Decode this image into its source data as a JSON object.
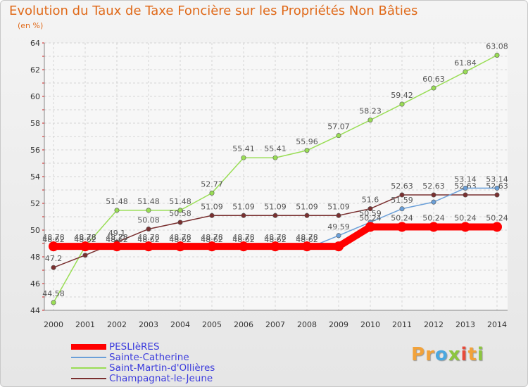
{
  "chart_data": {
    "type": "line",
    "title": "Evolution du Taux de Taxe Foncière sur les Propriétés Non Bâties",
    "ylabel": "(en %)",
    "xlabel": "",
    "ylim": [
      44,
      64
    ],
    "yticks": [
      44,
      46,
      48,
      50,
      52,
      54,
      56,
      58,
      60,
      62,
      64
    ],
    "grid": true,
    "legend_position": "bottom-left",
    "categories": [
      "2000",
      "2001",
      "2002",
      "2003",
      "2004",
      "2005",
      "2006",
      "2007",
      "2008",
      "2009",
      "2010",
      "2011",
      "2012",
      "2013",
      "2014"
    ],
    "series": [
      {
        "name": "PESLIèRES",
        "color": "#ff0000",
        "values": [
          48.78,
          48.78,
          48.78,
          48.78,
          48.78,
          48.78,
          48.78,
          48.78,
          48.78,
          48.78,
          50.24,
          50.24,
          50.24,
          50.24,
          50.24
        ],
        "labels": [
          "48.78",
          "48.78",
          "48.78",
          "48.78",
          "48.78",
          "48.78",
          "48.78",
          "48.78",
          "48.78",
          "",
          "50.24",
          "50.24",
          "50.24",
          "50.24",
          "50.24"
        ]
      },
      {
        "name": "Sainte-Catherine",
        "color": "#6a9fd8",
        "values": [
          48.62,
          48.62,
          48.62,
          48.62,
          48.62,
          48.62,
          48.62,
          48.62,
          48.62,
          49.59,
          50.59,
          51.59,
          52.1,
          53.14,
          53.14
        ],
        "labels": [
          "48.62",
          "48.62",
          "48.62",
          "48.62",
          "48.62",
          "48.62",
          "48.62",
          "48.62",
          "48.62",
          "49.59",
          "50.59",
          "51.59",
          "",
          "53.14",
          "53.14"
        ]
      },
      {
        "name": "Saint-Martin-d'Ollières",
        "color": "#99dd55",
        "values": [
          44.58,
          48.78,
          51.48,
          51.48,
          51.48,
          52.77,
          55.41,
          55.41,
          55.96,
          57.07,
          58.23,
          59.42,
          60.63,
          61.84,
          63.08
        ],
        "labels": [
          "44.58",
          "48.78",
          "51.48",
          "51.48",
          "51.48",
          "52.77",
          "55.41",
          "55.41",
          "55.96",
          "57.07",
          "58.23",
          "59.42",
          "60.63",
          "61.84",
          "63.08"
        ]
      },
      {
        "name": "Champagnat-le-Jeune",
        "color": "#7a3030",
        "values": [
          47.2,
          48.12,
          49.1,
          50.08,
          50.58,
          51.09,
          51.09,
          51.09,
          51.09,
          51.09,
          51.6,
          52.63,
          52.63,
          52.63,
          52.63
        ],
        "labels": [
          "47.2",
          "48.12",
          "49.1",
          "50.08",
          "50.58",
          "51.09",
          "51.09",
          "51.09",
          "51.09",
          "51.09",
          "51.6",
          "52.63",
          "52.63",
          "52.63",
          "52.63"
        ]
      }
    ]
  },
  "logo": {
    "letters": [
      "P",
      "r",
      "o",
      "x",
      "i",
      "t",
      "i"
    ],
    "colors": [
      "#f2a23a",
      "#f2a23a",
      "#4aa8e0",
      "#8cc63f",
      "#e84a3a",
      "#f2a23a",
      "#8cc63f"
    ]
  },
  "colors": {
    "title": "#e06a1a",
    "legend_text": "#3b3bdd",
    "axis": "#888888"
  }
}
